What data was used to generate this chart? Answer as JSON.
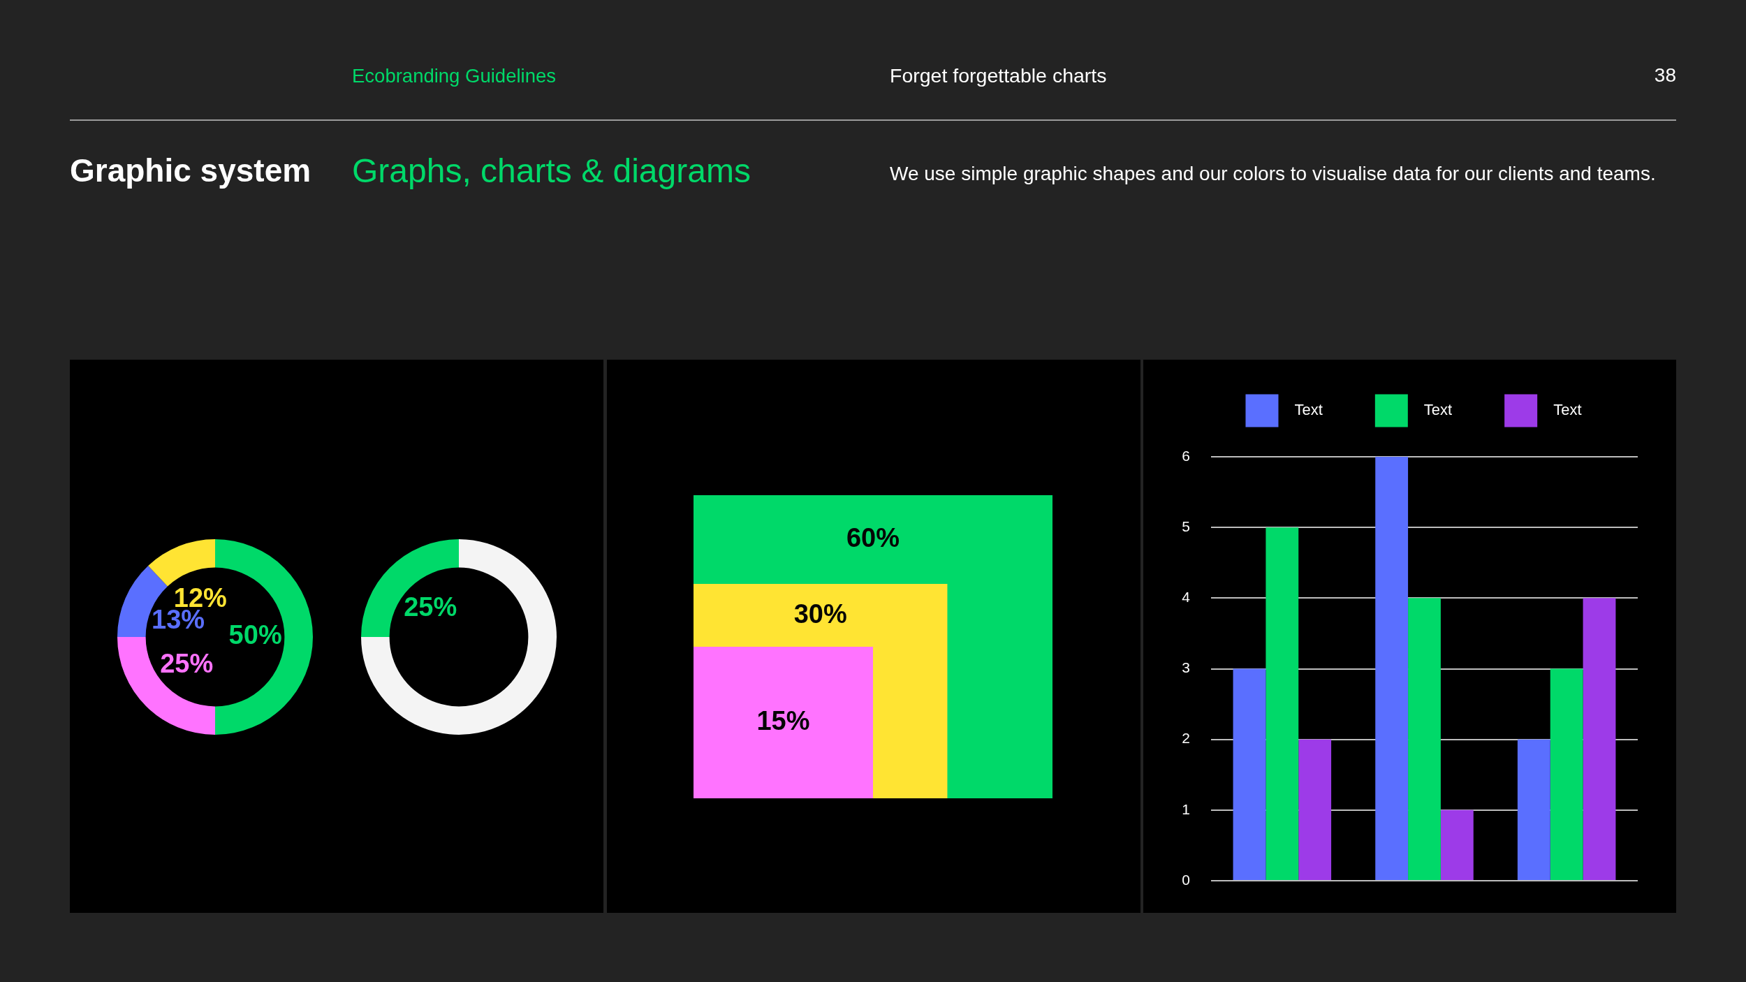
{
  "chart_data": [
    {
      "type": "other",
      "title": "Graphic system",
      "subtitle": "Graphs, charts & diagrams",
      "annotations": [
        "Ecobranding Guidelines",
        "Forget forgettable charts",
        "38",
        "We use simple graphic shapes and our colors to visualise data for our clients and teams."
      ]
    },
    {
      "type": "donut",
      "categories": [
        null,
        null,
        null,
        null
      ],
      "values": [
        50,
        25,
        13,
        12
      ],
      "colors": [
        "#00d969",
        "#ff73ff",
        "#5a6fff",
        "#ffe433"
      ],
      "value_labels": [
        "50%",
        "25%",
        "13%",
        "12%"
      ]
    },
    {
      "type": "donut",
      "categories": [
        null,
        null
      ],
      "values": [
        75,
        25
      ],
      "colors": [
        "#f4f4f4",
        "#00d969"
      ],
      "value_labels": [
        null,
        "25%"
      ]
    },
    {
      "type": "other",
      "categories": [
        null,
        null,
        null
      ],
      "values": [
        60,
        30,
        15
      ],
      "colors": [
        "#00d969",
        "#ffe433",
        "#ff73ff"
      ],
      "value_labels": [
        "60%",
        "30%",
        "15%"
      ]
    },
    {
      "type": "bar",
      "categories": [
        null,
        null,
        null
      ],
      "series": [
        {
          "name": "Text",
          "color": "#5a6fff",
          "values": [
            3,
            6,
            2
          ]
        },
        {
          "name": "Text",
          "color": "#00d969",
          "values": [
            5,
            4,
            3
          ]
        },
        {
          "name": "Text",
          "color": "#9d3be8",
          "values": [
            2,
            1,
            4
          ]
        }
      ],
      "ylim": [
        0,
        6
      ],
      "yticks": [
        0,
        1,
        2,
        3,
        4,
        5,
        6
      ],
      "grid": "y",
      "legend": "top"
    }
  ]
}
